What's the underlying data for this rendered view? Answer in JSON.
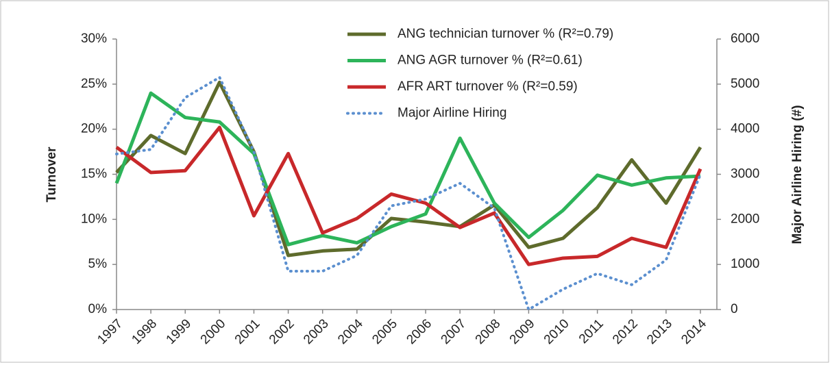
{
  "chart_data": {
    "type": "line",
    "categories": [
      "1997",
      "1998",
      "1999",
      "2000",
      "2001",
      "2002",
      "2003",
      "2004",
      "2005",
      "2006",
      "2007",
      "2008",
      "2009",
      "2010",
      "2011",
      "2012",
      "2013",
      "2014"
    ],
    "y_label": "Turnover",
    "y2_label": "Major Airline Hiring (#)",
    "ylim": [
      0,
      30
    ],
    "yticks": [
      {
        "value": 0,
        "label": "0%"
      },
      {
        "value": 5,
        "label": "5%"
      },
      {
        "value": 10,
        "label": "10%"
      },
      {
        "value": 15,
        "label": "15%"
      },
      {
        "value": 20,
        "label": "20%"
      },
      {
        "value": 25,
        "label": "25%"
      },
      {
        "value": 30,
        "label": "30%"
      }
    ],
    "y2lim": [
      0,
      6000
    ],
    "y2ticks": [
      0,
      1000,
      2000,
      3000,
      4000,
      5000,
      6000
    ],
    "grid": false,
    "legend": "top",
    "series": [
      {
        "name": "ANG technician turnover % (R²=0.79)",
        "color": "#5e6b2c",
        "style": "solid",
        "values": [
          15.2,
          19.3,
          17.3,
          25.2,
          17.5,
          6.0,
          6.5,
          6.7,
          10.1,
          9.7,
          9.2,
          11.6,
          6.9,
          7.9,
          11.3,
          16.6,
          11.8,
          18.0
        ]
      },
      {
        "name": "ANG AGR turnover % (R²=0.61)",
        "color": "#2db45a",
        "style": "solid",
        "values": [
          14.0,
          24.0,
          21.3,
          20.8,
          17.3,
          7.2,
          8.2,
          7.4,
          9.2,
          10.6,
          19.0,
          11.8,
          8.0,
          11.0,
          14.9,
          13.8,
          14.6,
          14.8
        ]
      },
      {
        "name": "AFR ART turnover % (R²=0.59)",
        "color": "#c8282a",
        "style": "solid",
        "values": [
          18.0,
          15.2,
          15.4,
          20.2,
          10.4,
          17.3,
          8.5,
          10.1,
          12.8,
          11.8,
          9.1,
          10.7,
          5.0,
          5.7,
          5.9,
          7.9,
          6.9,
          15.6
        ]
      },
      {
        "name": "Major Airline Hiring",
        "color": "#5b8fcf",
        "style": "dotted",
        "axis": "y2",
        "values": [
          3450,
          3550,
          4700,
          5150,
          3500,
          850,
          850,
          1200,
          2300,
          2450,
          2800,
          2250,
          0,
          450,
          800,
          550,
          1100,
          3000
        ]
      }
    ]
  }
}
